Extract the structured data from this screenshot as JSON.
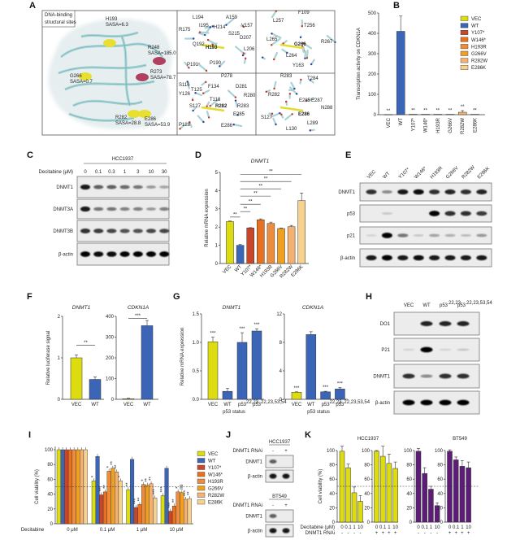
{
  "panel_labels": [
    "A",
    "B",
    "C",
    "D",
    "E",
    "F",
    "G",
    "H",
    "I",
    "J",
    "K"
  ],
  "colors": {
    "VEC": "#dcdc10",
    "WT": "#3b66b8",
    "Y107*": "#c8462a",
    "W146*": "#e8701e",
    "H193R": "#ec8c3c",
    "G266V": "#f0a020",
    "R282W": "#f4b272",
    "E286K": "#f6d28e",
    "bt549": "#5c1c78",
    "dna_binding": "#a83050",
    "structural": "#a89a10"
  },
  "panel_a": {
    "legend": [
      "DNA-binding",
      "structural sites"
    ],
    "annotations": [
      {
        "residue": "H193",
        "sasa": "SASA=6.3",
        "type": "structural"
      },
      {
        "residue": "R248",
        "sasa": "SASA=185.0",
        "type": "dna_binding"
      },
      {
        "residue": "R273",
        "sasa": "SASA=78.7",
        "type": "dna_binding"
      },
      {
        "residue": "G266",
        "sasa": "SASA=0.7",
        "type": "structural"
      },
      {
        "residue": "R282",
        "sasa": "SASA=28.8",
        "type": "structural"
      },
      {
        "residue": "E286",
        "sasa": "SASA=53.9",
        "type": "structural"
      }
    ],
    "detail_panels": [
      {
        "focus": "H193",
        "residues": [
          "L194",
          "A159",
          "R175",
          "I195",
          "H214",
          "V157",
          "S215",
          "Q192",
          "H193",
          "D207",
          "L206",
          "P191",
          "P190"
        ]
      },
      {
        "focus": "G266",
        "residues": [
          "F109",
          "L257",
          "T256",
          "L265",
          "G266",
          "R267",
          "L264",
          "Y163"
        ]
      },
      {
        "focus": "R282",
        "residues": [
          "P278",
          "S116",
          "T125",
          "F134",
          "D281",
          "R280",
          "Y126",
          "T118",
          "R282",
          "R283",
          "S127",
          "E285",
          "P128",
          "E286"
        ]
      },
      {
        "focus": "E286",
        "residues": [
          "R283",
          "T284",
          "R282",
          "E287",
          "E285",
          "N288",
          "S127",
          "E286",
          "L289",
          "L130"
        ]
      }
    ]
  },
  "blots": {
    "C": {
      "title": "HCC1937",
      "treatment_label": "Decitabine (μM)",
      "lanes": [
        "0",
        "0.1",
        "0.3",
        "1",
        "3",
        "10",
        "30"
      ],
      "rows": [
        {
          "label": "DNMT1",
          "intensity": [
            0.9,
            0.6,
            0.6,
            0.55,
            0.5,
            0.35,
            0.3
          ]
        },
        {
          "label": "DNMT3A",
          "intensity": [
            0.9,
            0.5,
            0.5,
            0.45,
            0.45,
            0.35,
            0.45
          ]
        },
        {
          "label": "DNMT3B",
          "intensity": [
            0.8,
            0.75,
            0.7,
            0.65,
            0.65,
            0.7,
            0.7
          ]
        },
        {
          "label": "β-actin",
          "intensity": [
            1,
            0.95,
            0.95,
            1,
            1,
            1,
            1
          ]
        }
      ]
    },
    "E": {
      "lanes": [
        "VEC",
        "WT",
        "Y107*",
        "W146*",
        "H193R",
        "G266V",
        "R282W",
        "E286K"
      ],
      "rows": [
        {
          "label": "DNMT1",
          "intensity": [
            0.8,
            0.4,
            0.9,
            0.95,
            0.8,
            0.85,
            0.8,
            0.85
          ]
        },
        {
          "label": "p53",
          "intensity": [
            0,
            0.15,
            0,
            0,
            1,
            0.8,
            0.8,
            0.75
          ]
        },
        {
          "label": "p21",
          "intensity": [
            0.1,
            1,
            0.5,
            0.15,
            0.3,
            0.25,
            0.2,
            0.35
          ]
        },
        {
          "label": "β-actin",
          "intensity": [
            0.9,
            1,
            0.9,
            0.95,
            0.9,
            0.9,
            0.9,
            0.9
          ]
        }
      ]
    },
    "H": {
      "lanes": [
        {
          "label": "VEC",
          "sup": ""
        },
        {
          "label": "WT",
          "sup": ""
        },
        {
          "label": "p53",
          "sup": "22,23"
        },
        {
          "label": "p53",
          "sup": "22,23,53,54"
        }
      ],
      "rows": [
        {
          "label": "DO1",
          "intensity": [
            0,
            0.85,
            0.85,
            0.85
          ]
        },
        {
          "label": "P21",
          "intensity": [
            0.1,
            1,
            0.1,
            0.15
          ]
        },
        {
          "label": "DNMT1",
          "intensity": [
            0.8,
            0.4,
            0.8,
            0.8
          ]
        },
        {
          "label": "β-actin",
          "intensity": [
            1,
            1,
            1,
            1
          ]
        }
      ]
    },
    "J": [
      {
        "title": "HCC1937",
        "treatment_label": "DNMT1 RNAi",
        "lanes": [
          "-",
          "+"
        ],
        "rows": [
          {
            "label": "DNMT1",
            "intensity": [
              0.6,
              0
            ]
          },
          {
            "label": "β-actin",
            "intensity": [
              0.9,
              0.9
            ]
          }
        ]
      },
      {
        "title": "BT549",
        "treatment_label": "DNMT1 RNAi",
        "lanes": [
          "-",
          "+"
        ],
        "rows": [
          {
            "label": "DNMT1",
            "intensity": [
              0.6,
              0
            ]
          },
          {
            "label": "β-actin",
            "intensity": [
              0.9,
              0.9
            ]
          }
        ]
      }
    ]
  },
  "chart_data": [
    {
      "id": "B",
      "type": "bar",
      "title": "",
      "ylabel": "Transcription activity on CDKN1A",
      "ylim": [
        0,
        500
      ],
      "yticks": [
        0,
        100,
        200,
        300,
        400,
        500
      ],
      "ytick_labels": [
        "0",
        "100",
        "200",
        "300",
        "400",
        "500"
      ],
      "categories": [
        "VEC",
        "WT",
        "Y107*",
        "W146*",
        "H193R",
        "G266V",
        "R282W",
        "E286K"
      ],
      "values": [
        1,
        410,
        2,
        2,
        2,
        2,
        12,
        2
      ],
      "errors": [
        0,
        75,
        0,
        0,
        0,
        0,
        8,
        0
      ],
      "significance": [
        "**",
        "",
        "**",
        "**",
        "**",
        "**",
        "**",
        "**"
      ],
      "legend": [
        "VEC",
        "WT",
        "Y107*",
        "W146*",
        "H193R",
        "G266V",
        "R282W",
        "E286K"
      ],
      "legend_position": "right"
    },
    {
      "id": "D",
      "type": "bar",
      "title": "DNMT1",
      "ylabel": "Relative mRNA expression",
      "ylim": [
        0,
        5
      ],
      "yticks": [
        0,
        1,
        2,
        3,
        4,
        5
      ],
      "ytick_labels": [
        "0",
        "1",
        "2",
        "3",
        "4",
        "5"
      ],
      "categories": [
        "VEC",
        "WT",
        "Y107*",
        "W146*",
        "H193R",
        "G266V",
        "R282W",
        "E286K"
      ],
      "values": [
        2.3,
        1.0,
        1.95,
        2.4,
        2.2,
        1.92,
        2.02,
        3.45
      ],
      "errors": [
        0.03,
        0.04,
        0.02,
        0.05,
        0.07,
        0.03,
        0.07,
        0.42
      ],
      "significance": [
        "",
        "",
        "",
        "",
        "",
        "",
        "",
        ""
      ],
      "comparisons": [
        {
          "from": 0,
          "to": 1,
          "label": "**",
          "y": 2.55
        },
        {
          "from": 1,
          "to": 2,
          "label": "**",
          "y": 2.85
        },
        {
          "from": 1,
          "to": 3,
          "label": "**",
          "y": 3.25
        },
        {
          "from": 1,
          "to": 4,
          "label": "**",
          "y": 3.7
        },
        {
          "from": 1,
          "to": 5,
          "label": "**",
          "y": 4.1
        },
        {
          "from": 1,
          "to": 6,
          "label": "**",
          "y": 4.5
        },
        {
          "from": 1,
          "to": 7,
          "label": "**",
          "y": 4.9
        }
      ]
    },
    {
      "id": "F1",
      "type": "bar",
      "title": "DNMT1",
      "ylabel": "Relative luciferase signal",
      "ylim": [
        0,
        2
      ],
      "yticks": [
        0,
        1,
        2
      ],
      "ytick_labels": [
        "0",
        "1",
        "2"
      ],
      "categories": [
        "VEC",
        "WT"
      ],
      "values": [
        1.0,
        0.48
      ],
      "errors": [
        0.07,
        0.06
      ],
      "significance": [
        "",
        ""
      ],
      "comparisons": [
        {
          "from": 0,
          "to": 1,
          "label": "**",
          "y": 1.3
        }
      ]
    },
    {
      "id": "F2",
      "type": "bar",
      "title": "CDKN1A",
      "ylabel": "",
      "ylim": [
        0,
        400
      ],
      "yticks": [
        0,
        100,
        200,
        300,
        400
      ],
      "ytick_labels": [
        "0",
        "100",
        "200",
        "300",
        "400"
      ],
      "categories": [
        "VEC",
        "WT"
      ],
      "values": [
        3,
        355
      ],
      "errors": [
        2,
        25
      ],
      "significance": [
        "",
        ""
      ],
      "comparisons": [
        {
          "from": 0,
          "to": 1,
          "label": "***",
          "y": 390
        }
      ]
    },
    {
      "id": "G1",
      "type": "bar",
      "title": "DNMT1",
      "ylabel": "Relative mRNA expression",
      "xlabel": "p53 status",
      "ylim": [
        0,
        1.5
      ],
      "yticks": [
        0,
        0.5,
        1,
        1.5
      ],
      "ytick_labels": [
        "0.0",
        "0.5",
        "1.0",
        "1.5"
      ],
      "categories": [
        "VEC",
        "WT",
        "p53",
        "p53"
      ],
      "category_sup": [
        "",
        "",
        "22,23",
        "22,23,53,54"
      ],
      "values": [
        1.01,
        0.14,
        1.0,
        1.2
      ],
      "errors": [
        0.08,
        0.05,
        0.17,
        0.04
      ],
      "significance": [
        "***",
        "",
        "***",
        "***"
      ]
    },
    {
      "id": "G2",
      "type": "bar",
      "title": "CDKN1A",
      "ylabel": "",
      "xlabel": "p53 status",
      "ylim": [
        0,
        12
      ],
      "yticks": [
        0,
        4,
        8,
        12
      ],
      "ytick_labels": [
        "0",
        "4",
        "8",
        "12"
      ],
      "categories": [
        "VEC",
        "WT",
        "p53",
        "p53"
      ],
      "category_sup": [
        "",
        "",
        "22,23",
        "22,23,53,54"
      ],
      "values": [
        1.0,
        9.1,
        1.05,
        1.45
      ],
      "errors": [
        0.05,
        0.4,
        0.08,
        0.2
      ],
      "significance": [
        "***",
        "",
        "***",
        "***"
      ]
    },
    {
      "id": "I",
      "type": "bar",
      "title": "",
      "ylabel": "Cell viability (%)",
      "xlabel": "Decitabine",
      "ylim": [
        0,
        100
      ],
      "yticks": [
        0,
        20,
        40,
        60,
        80,
        100
      ],
      "ytick_labels": [
        "0",
        "20",
        "40",
        "60",
        "80",
        "100"
      ],
      "categories": [
        "0 μM",
        "0.1 μM",
        "1 μM",
        "10 μM"
      ],
      "reference_line": 50,
      "series": [
        {
          "name": "VEC",
          "values": [
            100,
            58,
            46,
            38
          ],
          "significance": [
            "",
            "*",
            "**",
            "***"
          ]
        },
        {
          "name": "WT",
          "values": [
            100,
            91,
            87,
            75
          ],
          "significance": [
            "",
            "",
            "",
            ""
          ]
        },
        {
          "name": "Y107*",
          "values": [
            100,
            39,
            22,
            17
          ],
          "significance": [
            "",
            "***",
            "***",
            "***"
          ]
        },
        {
          "name": "W146*",
          "values": [
            100,
            43,
            26,
            24
          ],
          "significance": [
            "",
            "**",
            "**",
            "**"
          ]
        },
        {
          "name": "H193R",
          "values": [
            100,
            71,
            53,
            43
          ],
          "significance": [
            "",
            "*",
            "*",
            "*"
          ]
        },
        {
          "name": "G266V",
          "values": [
            100,
            75,
            52,
            42
          ],
          "significance": [
            "",
            "**",
            "**",
            "ns"
          ]
        },
        {
          "name": "R282W",
          "values": [
            100,
            70,
            54,
            33
          ],
          "significance": [
            "",
            "**",
            "**",
            "***"
          ]
        },
        {
          "name": "E286K",
          "values": [
            100,
            58,
            35,
            34
          ],
          "significance": [
            "",
            "*",
            "***",
            "**"
          ]
        }
      ],
      "legend_position": "right"
    },
    {
      "id": "K1",
      "type": "bar",
      "title": "HCC1937",
      "ylabel": "Cell viability (%)",
      "ylim": [
        0,
        100
      ],
      "yticks": [
        0,
        20,
        40,
        60,
        80,
        100
      ],
      "ytick_labels": [
        "0",
        "20",
        "40",
        "60",
        "80",
        "100"
      ],
      "categories": [
        "0",
        "0.1",
        "1",
        "10"
      ],
      "rnai": [
        "-",
        "-",
        "-",
        "-"
      ],
      "values": [
        99,
        76,
        41,
        29
      ],
      "errors": [
        7,
        5,
        8,
        8
      ],
      "significance": [
        "",
        "",
        "",
        ""
      ],
      "reference_line": 50
    },
    {
      "id": "K2",
      "type": "bar",
      "title": "",
      "ylabel": "",
      "ylim": [
        0,
        100
      ],
      "yticks": [
        0,
        20,
        40,
        60,
        80,
        100
      ],
      "ytick_labels": [
        "0",
        "20",
        "40",
        "60",
        "80",
        "100"
      ],
      "categories": [
        "0",
        "0.1",
        "1",
        "10"
      ],
      "rnai": [
        "+",
        "+",
        "+",
        "+"
      ],
      "values": [
        99,
        92,
        82,
        75
      ],
      "errors": [
        1,
        14,
        13,
        9
      ],
      "significance": [
        "",
        "",
        "",
        ""
      ]
    },
    {
      "id": "K3",
      "type": "bar",
      "title": "BT549",
      "ylabel": "",
      "ylim": [
        0,
        100
      ],
      "yticks": [
        0,
        20,
        40,
        60,
        80,
        100
      ],
      "ytick_labels": [
        "0",
        "20",
        "40",
        "60",
        "80",
        "100"
      ],
      "categories": [
        "0",
        "0.1",
        "1",
        "10"
      ],
      "rnai": [
        "-",
        "-",
        "-",
        "-"
      ],
      "values": [
        99,
        68,
        46,
        23
      ],
      "errors": [
        4,
        8,
        4,
        4
      ],
      "significance": [
        "",
        "",
        "",
        ""
      ]
    },
    {
      "id": "K4",
      "type": "bar",
      "title": "",
      "ylabel": "",
      "ylim": [
        0,
        100
      ],
      "yticks": [
        0,
        20,
        40,
        60,
        80,
        100
      ],
      "ytick_labels": [
        "0",
        "20",
        "40",
        "60",
        "80",
        "100"
      ],
      "categories": [
        "0",
        "0.1",
        "1",
        "10"
      ],
      "rnai": [
        "+",
        "+",
        "+",
        "+"
      ],
      "values": [
        99,
        87,
        78,
        76
      ],
      "errors": [
        2,
        4,
        8,
        8
      ],
      "significance": [
        "",
        "",
        "",
        ""
      ]
    }
  ],
  "row_labels": {
    "decitabine_um": "Decitabine (μM)",
    "dnmt1_rnai": "DNMT1 RNAi"
  }
}
